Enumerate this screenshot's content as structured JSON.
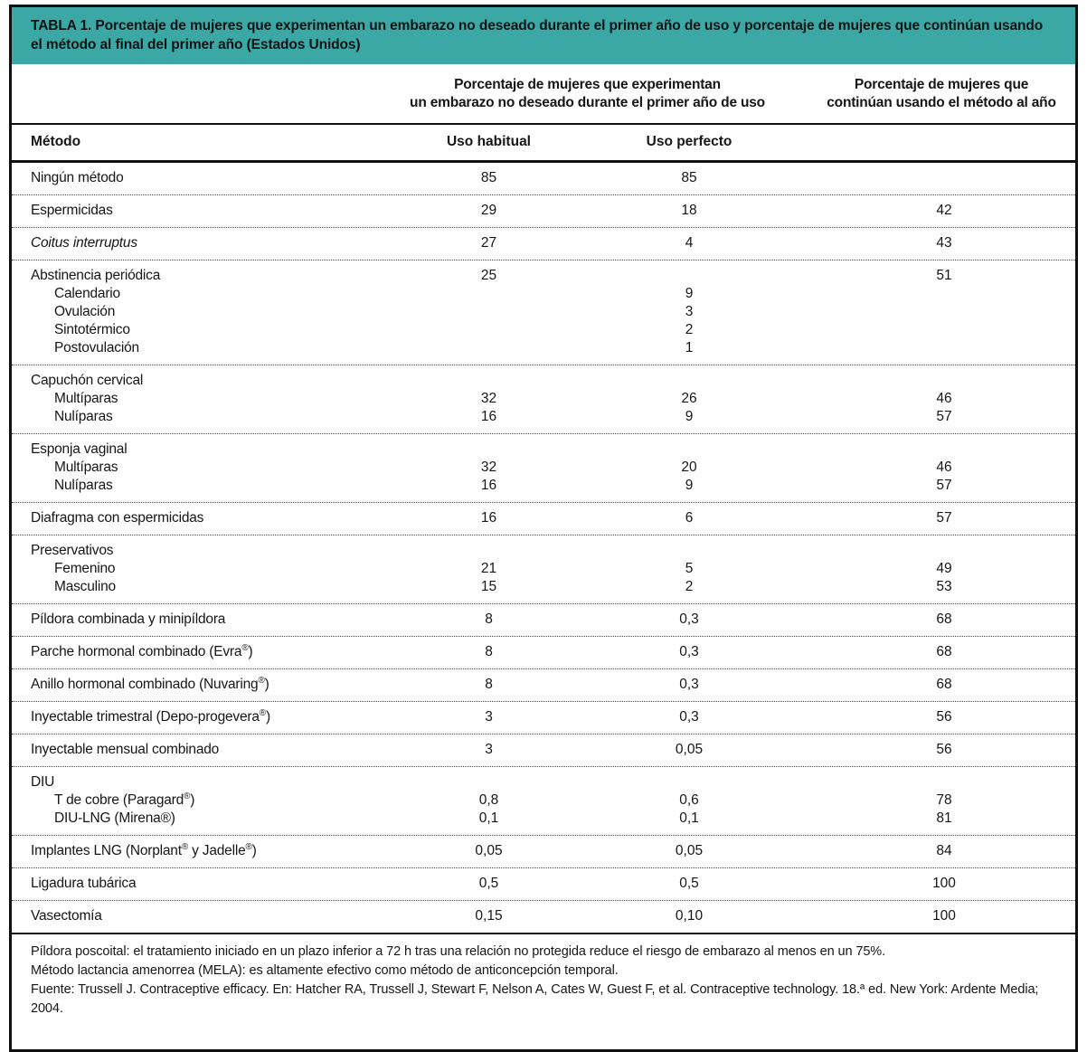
{
  "title": "TABLA 1. Porcentaje de mujeres que experimentan un embarazo no deseado durante el primer año de uso y porcentaje de mujeres que continúan usando el método al final del primer año (Estados Unidos)",
  "colors": {
    "title_bar_bg": "#3BA8A5",
    "border": "#101010",
    "text": "#161616"
  },
  "header": {
    "span_pregnancy_line1": "Porcentaje de mujeres que experimentan",
    "span_pregnancy_line2": "un embarazo no deseado durante el primer año de uso",
    "span_continuation_line1": "Porcentaje de mujeres que",
    "span_continuation_line2": "continúan usando el método al año",
    "col_method": "Método",
    "col_typical": "Uso habitual",
    "col_perfect": "Uso perfecto"
  },
  "chart_data": {
    "type": "table",
    "columns": [
      "Método",
      "Uso habitual",
      "Uso perfecto",
      "Continúan al año"
    ],
    "groups": [
      {
        "rows": [
          {
            "label": "Ningún método",
            "v": [
              "85",
              "85",
              ""
            ]
          }
        ]
      },
      {
        "rows": [
          {
            "label": "Espermicidas",
            "v": [
              "29",
              "18",
              "42"
            ]
          }
        ]
      },
      {
        "rows": [
          {
            "label": "Coitus interruptus",
            "italic": true,
            "v": [
              "27",
              "4",
              "43"
            ]
          }
        ]
      },
      {
        "rows": [
          {
            "label": "Abstinencia periódica",
            "v": [
              "25",
              "",
              "51"
            ]
          },
          {
            "label": "Calendario",
            "indent": true,
            "v": [
              "",
              "9",
              ""
            ]
          },
          {
            "label": "Ovulación",
            "indent": true,
            "v": [
              "",
              "3",
              ""
            ]
          },
          {
            "label": "Sintotérmico",
            "indent": true,
            "v": [
              "",
              "2",
              ""
            ]
          },
          {
            "label": "Postovulación",
            "indent": true,
            "v": [
              "",
              "1",
              ""
            ]
          }
        ]
      },
      {
        "rows": [
          {
            "label": "Capuchón cervical",
            "v": [
              "",
              "",
              ""
            ]
          },
          {
            "label": "Multíparas",
            "indent": true,
            "v": [
              "32",
              "26",
              "46"
            ]
          },
          {
            "label": "Nulíparas",
            "indent": true,
            "v": [
              "16",
              "9",
              "57"
            ]
          }
        ]
      },
      {
        "rows": [
          {
            "label": "Esponja vaginal",
            "v": [
              "",
              "",
              ""
            ]
          },
          {
            "label": "Multíparas",
            "indent": true,
            "v": [
              "32",
              "20",
              "46"
            ]
          },
          {
            "label": "Nulíparas",
            "indent": true,
            "v": [
              "16",
              "9",
              "57"
            ]
          }
        ]
      },
      {
        "rows": [
          {
            "label": "Diafragma con espermicidas",
            "v": [
              "16",
              "6",
              "57"
            ]
          }
        ]
      },
      {
        "rows": [
          {
            "label": "Preservativos",
            "v": [
              "",
              "",
              ""
            ]
          },
          {
            "label": "Femenino",
            "indent": true,
            "v": [
              "21",
              "5",
              "49"
            ]
          },
          {
            "label": "Masculino",
            "indent": true,
            "v": [
              "15",
              "2",
              "53"
            ]
          }
        ]
      },
      {
        "rows": [
          {
            "label": "Píldora combinada y minipíldora",
            "v": [
              "8",
              "0,3",
              "68"
            ]
          }
        ]
      },
      {
        "rows": [
          {
            "label": "Parche hormonal combinado (Evra®)",
            "sup": true,
            "v": [
              "8",
              "0,3",
              "68"
            ]
          }
        ]
      },
      {
        "rows": [
          {
            "label": "Anillo hormonal combinado (Nuvaring®)",
            "sup": true,
            "v": [
              "8",
              "0,3",
              "68"
            ]
          }
        ]
      },
      {
        "rows": [
          {
            "label": "Inyectable trimestral (Depo-progevera®)",
            "sup": true,
            "v": [
              "3",
              "0,3",
              "56"
            ]
          }
        ]
      },
      {
        "rows": [
          {
            "label": "Inyectable mensual combinado",
            "v": [
              "3",
              "0,05",
              "56"
            ]
          }
        ]
      },
      {
        "rows": [
          {
            "label": "DIU",
            "v": [
              "",
              "",
              ""
            ]
          },
          {
            "label": "T de cobre (Paragard®)",
            "indent": true,
            "sup": true,
            "v": [
              "0,8",
              "0,6",
              "78"
            ]
          },
          {
            "label": "DIU-LNG (Mirena®)",
            "indent": true,
            "v": [
              "0,1",
              "0,1",
              "81"
            ]
          }
        ]
      },
      {
        "rows": [
          {
            "label": "Implantes LNG (Norplant® y Jadelle®)",
            "sup": true,
            "v": [
              "0,05",
              "0,05",
              "84"
            ]
          }
        ]
      },
      {
        "rows": [
          {
            "label": "Ligadura tubárica",
            "v": [
              "0,5",
              "0,5",
              "100"
            ]
          }
        ]
      },
      {
        "rows": [
          {
            "label": "Vasectomía",
            "v": [
              "0,15",
              "0,10",
              "100"
            ]
          }
        ]
      }
    ]
  },
  "footnotes": [
    "Píldora poscoital: el tratamiento iniciado en un plazo inferior a 72 h tras una relación no protegida reduce el riesgo de embarazo al menos en un 75%.",
    "Método lactancia amenorrea (MELA): es altamente efectivo como método de anticoncepción temporal.",
    "Fuente: Trussell J. Contraceptive efficacy. En: Hatcher RA, Trussell J, Stewart F, Nelson A, Cates W, Guest F, et al. Contraceptive technology. 18.ª ed. New York: Ardente Media; 2004."
  ]
}
